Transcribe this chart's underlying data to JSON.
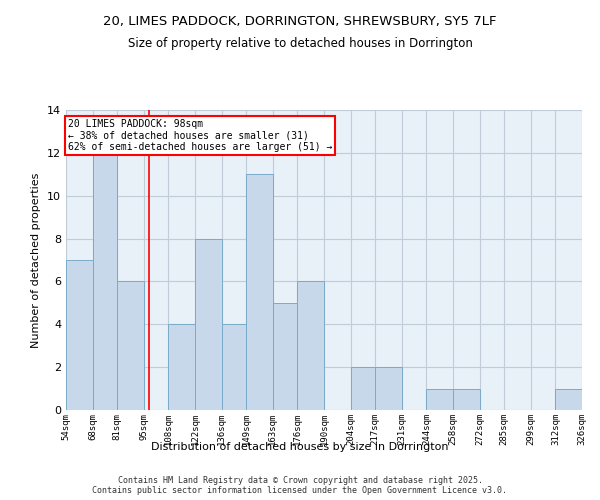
{
  "title_line1": "20, LIMES PADDOCK, DORRINGTON, SHREWSBURY, SY5 7LF",
  "title_line2": "Size of property relative to detached houses in Dorrington",
  "xlabel": "Distribution of detached houses by size in Dorrington",
  "ylabel": "Number of detached properties",
  "bin_edges": [
    54,
    68,
    81,
    95,
    108,
    122,
    136,
    149,
    163,
    176,
    190,
    204,
    217,
    231,
    244,
    258,
    272,
    285,
    299,
    312,
    326
  ],
  "counts": [
    7,
    12,
    6,
    0,
    4,
    8,
    4,
    11,
    5,
    6,
    0,
    2,
    2,
    0,
    1,
    1,
    0,
    0,
    0,
    1
  ],
  "bar_color": "#c8d8eb",
  "bar_edge_color": "#7aaaca",
  "red_line_x": 98,
  "annotation_line1": "20 LIMES PADDOCK: 98sqm",
  "annotation_line2": "← 38% of detached houses are smaller (31)",
  "annotation_line3": "62% of semi-detached houses are larger (51) →",
  "ylim": [
    0,
    14
  ],
  "yticks": [
    0,
    2,
    4,
    6,
    8,
    10,
    12,
    14
  ],
  "tick_labels": [
    "54sqm",
    "68sqm",
    "81sqm",
    "95sqm",
    "108sqm",
    "122sqm",
    "136sqm",
    "149sqm",
    "163sqm",
    "176sqm",
    "190sqm",
    "204sqm",
    "217sqm",
    "231sqm",
    "244sqm",
    "258sqm",
    "272sqm",
    "285sqm",
    "299sqm",
    "312sqm",
    "326sqm"
  ],
  "footer_text": "Contains HM Land Registry data © Crown copyright and database right 2025.\nContains public sector information licensed under the Open Government Licence v3.0.",
  "bg_color": "#e8f0f8",
  "grid_color": "#c0ccd8",
  "fig_bg": "#ffffff"
}
